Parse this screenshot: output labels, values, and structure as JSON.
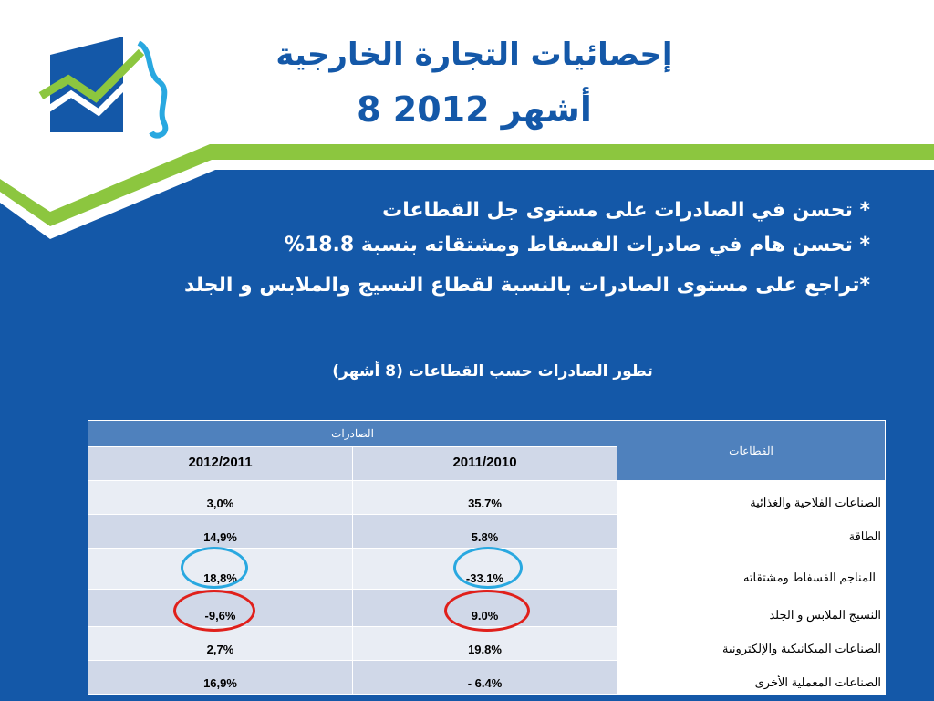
{
  "header": {
    "title_line1": "إحصائيات التجارة الخارجية",
    "title_line2": "8 أشهر 2012"
  },
  "bullets": [
    "* تحسن في الصادرات على مستوى جل القطاعات",
    "* تحسن هام في صادرات الفسفاط ومشتقاته بنسبة 18.8%",
    "*تراجع على مستوى الصادرات بالنسبة لقطاع النسيج والملابس و الجلد"
  ],
  "caption": "تطور الصادرات  حسب القطاعات (8 أشهر)",
  "table": {
    "group_header": "الصادرات",
    "sector_header": "القطاعات",
    "col_2012": "2012/2011",
    "col_2011": "2011/2010",
    "rows": [
      {
        "sector": "الصناعات الفلاحية والغذائية",
        "v2012": "3,0%",
        "v2011": "35.7%"
      },
      {
        "sector": "الطاقة",
        "v2012": "14,9%",
        "v2011": "5.8%"
      },
      {
        "sector": "المناجم الفسفاط ومشتقاته",
        "v2012": "18,8%",
        "v2011": "-33.1%"
      },
      {
        "sector": "النسيج الملابس و الجلد",
        "v2012": "-9,6%",
        "v2011": "9.0%"
      },
      {
        "sector": "الصناعات الميكانيكية والإلكترونية",
        "v2012": "2,7%",
        "v2011": "19.8%"
      },
      {
        "sector": "الصناعات المعملية الأخرى",
        "v2012": "16,9%",
        "v2011": "- 6.4%"
      }
    ]
  },
  "colors": {
    "background_blue": "#1458a8",
    "accent_green": "#8cc63f",
    "table_header_blue": "#4f81bd",
    "highlight_blue": "#29a8e0",
    "highlight_red": "#e0201b"
  }
}
